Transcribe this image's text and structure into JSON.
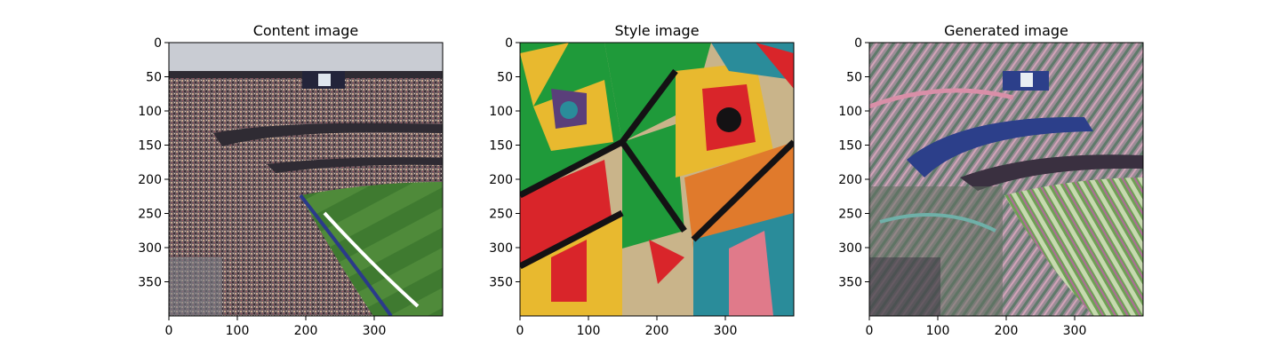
{
  "chart_data": [
    {
      "type": "image",
      "title": "Content image",
      "xlim": [
        0,
        400
      ],
      "ylim": [
        400,
        0
      ],
      "xticks": [
        0,
        100,
        200,
        300
      ],
      "yticks": [
        0,
        50,
        100,
        150,
        200,
        250,
        300,
        350
      ],
      "xtick_labels": [
        "0",
        "100",
        "200",
        "300"
      ],
      "ytick_labels": [
        "0",
        "50",
        "100",
        "150",
        "200",
        "250",
        "300",
        "350"
      ],
      "scene": "stadium",
      "scoreboard_text": "",
      "colors": {
        "sky": "#c9ccd3",
        "crowd": "#6b5a5e",
        "field": "#4f8a3a",
        "field_dark": "#3f7a30",
        "roof": "#2f2b33",
        "line": "#ffffff"
      }
    },
    {
      "type": "image",
      "title": "Style image",
      "xlim": [
        0,
        400
      ],
      "ylim": [
        400,
        0
      ],
      "xticks": [
        0,
        100,
        200,
        300
      ],
      "yticks": [
        0,
        50,
        100,
        150,
        200,
        250,
        300,
        350
      ],
      "xtick_labels": [
        "0",
        "100",
        "200",
        "300"
      ],
      "ytick_labels": [
        "0",
        "50",
        "100",
        "150",
        "200",
        "250",
        "300",
        "350"
      ],
      "scene": "cubist",
      "colors": {
        "green": "#1f9a3a",
        "red": "#d9252a",
        "yellow": "#e8b92f",
        "orange": "#e07a2c",
        "teal": "#2a8c9a",
        "black": "#141214",
        "beige": "#c9b48a",
        "purple": "#5a3f7a",
        "pink": "#e07a8a"
      }
    },
    {
      "type": "image",
      "title": "Generated image",
      "xlim": [
        0,
        400
      ],
      "ylim": [
        400,
        0
      ],
      "xticks": [
        0,
        100,
        200,
        300
      ],
      "yticks": [
        0,
        50,
        100,
        150,
        200,
        250,
        300,
        350
      ],
      "xtick_labels": [
        "0",
        "100",
        "200",
        "300"
      ],
      "ytick_labels": [
        "0",
        "50",
        "100",
        "150",
        "200",
        "250",
        "300",
        "350"
      ],
      "scene": "stylized-stadium",
      "colors": {
        "base": "#a89aa3",
        "band": "#2c3f8a",
        "field": "#6fa055",
        "field_light": "#c7d9b0",
        "dark": "#3a3040",
        "pink": "#d98fa8",
        "teal": "#6fb0a8"
      }
    }
  ]
}
